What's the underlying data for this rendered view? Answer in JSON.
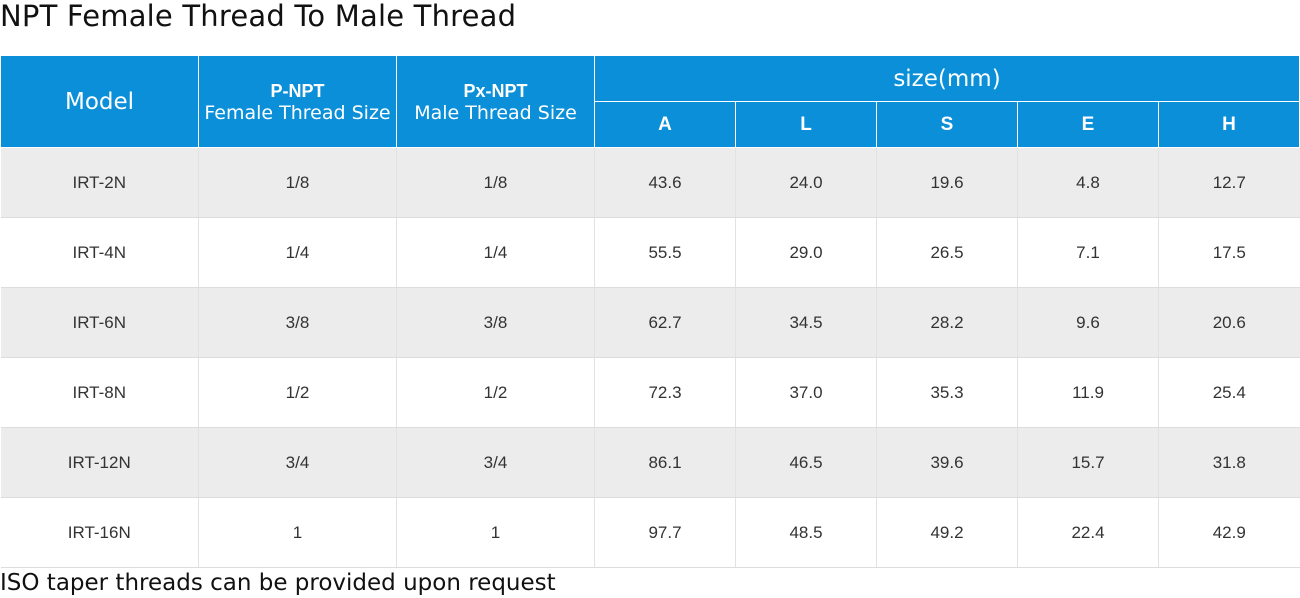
{
  "page": {
    "title": "NPT Female Thread To Male Thread",
    "footnote": "ISO taper threads can be provided upon request"
  },
  "colors": {
    "header_bg": "#0a8fd8",
    "header_text": "#ffffff",
    "row_alt_bg": "#ececed",
    "row_bg": "#ffffff"
  },
  "table": {
    "headers": {
      "model": "Model",
      "p_npt_line1": "P-NPT",
      "p_npt_line2": "Female Thread Size",
      "px_npt_line1": "Px-NPT",
      "px_npt_line2": "Male Thread Size",
      "size_group": "size(mm)",
      "dims": [
        "A",
        "L",
        "S",
        "E",
        "H"
      ]
    },
    "rows": [
      {
        "model": "IRT-2N",
        "female": "1/8",
        "male": "1/8",
        "A": "43.6",
        "L": "24.0",
        "S": "19.6",
        "E": "4.8",
        "H": "12.7"
      },
      {
        "model": "IRT-4N",
        "female": "1/4",
        "male": "1/4",
        "A": "55.5",
        "L": "29.0",
        "S": "26.5",
        "E": "7.1",
        "H": "17.5"
      },
      {
        "model": "IRT-6N",
        "female": "3/8",
        "male": "3/8",
        "A": "62.7",
        "L": "34.5",
        "S": "28.2",
        "E": "9.6",
        "H": "20.6"
      },
      {
        "model": "IRT-8N",
        "female": "1/2",
        "male": "1/2",
        "A": "72.3",
        "L": "37.0",
        "S": "35.3",
        "E": "11.9",
        "H": "25.4"
      },
      {
        "model": "IRT-12N",
        "female": "3/4",
        "male": "3/4",
        "A": "86.1",
        "L": "46.5",
        "S": "39.6",
        "E": "15.7",
        "H": "31.8"
      },
      {
        "model": "IRT-16N",
        "female": "1",
        "male": "1",
        "A": "97.7",
        "L": "48.5",
        "S": "49.2",
        "E": "22.4",
        "H": "42.9"
      }
    ]
  }
}
